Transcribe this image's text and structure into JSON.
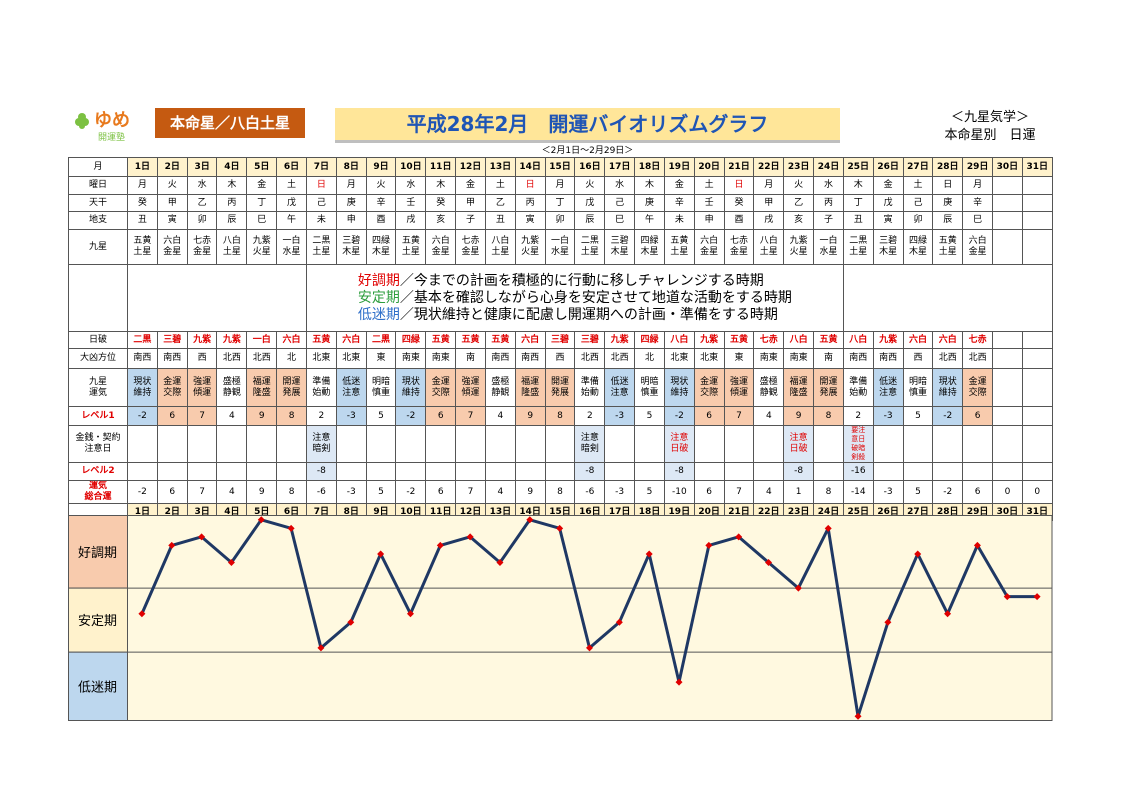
{
  "header": {
    "logo": "ゆめ",
    "logo_sub": "開運塾",
    "honmei": "本命星／八白土星",
    "title": "平成28年2月　開運バイオリズムグラフ",
    "subtitle": "＜2月1日～2月29日＞",
    "right_top": "＜九星気学＞",
    "right_bottom": "本命星別　日運"
  },
  "table": {
    "row_labels": {
      "month": "月",
      "weekday": "曜日",
      "stem": "天干",
      "branch": "地支",
      "star": "九星",
      "nippa": "日破",
      "direction": "大凶方位",
      "fortune": "九星\n運気",
      "level1": "レベル1",
      "caution": "金銭・契約\n注意日",
      "level2": "レベル2",
      "total": "運気\n総合運"
    },
    "row_label_colors": {
      "level1": "#e00000",
      "level2": "#e00000",
      "total": "#e00000"
    },
    "days": [
      "1日",
      "2日",
      "3日",
      "4日",
      "5日",
      "6日",
      "7日",
      "8日",
      "9日",
      "10日",
      "11日",
      "12日",
      "13日",
      "14日",
      "15日",
      "16日",
      "17日",
      "18日",
      "19日",
      "20日",
      "21日",
      "22日",
      "23日",
      "24日",
      "25日",
      "26日",
      "27日",
      "28日",
      "29日",
      "30日",
      "31日"
    ],
    "weekdays": [
      "月",
      "火",
      "水",
      "木",
      "金",
      "土",
      "日",
      "月",
      "火",
      "水",
      "木",
      "金",
      "土",
      "日",
      "月",
      "火",
      "水",
      "木",
      "金",
      "土",
      "日",
      "月",
      "火",
      "水",
      "木",
      "金",
      "土",
      "日",
      "月"
    ],
    "weekday_colors": [
      "#000",
      "#000",
      "#000",
      "#000",
      "#000",
      "#000",
      "#e00000",
      "#000",
      "#000",
      "#000",
      "#000",
      "#000",
      "#000",
      "#e00000",
      "#000",
      "#000",
      "#000",
      "#000",
      "#000",
      "#000",
      "#e00000",
      "#000",
      "#000",
      "#000",
      "#000",
      "#000",
      "#000",
      "#000",
      "#000"
    ],
    "stems": [
      "癸",
      "甲",
      "乙",
      "丙",
      "丁",
      "戊",
      "己",
      "庚",
      "辛",
      "壬",
      "癸",
      "甲",
      "乙",
      "丙",
      "丁",
      "戊",
      "己",
      "庚",
      "辛",
      "壬",
      "癸",
      "甲",
      "乙",
      "丙",
      "丁",
      "戊",
      "己",
      "庚",
      "辛"
    ],
    "branches": [
      "丑",
      "寅",
      "卯",
      "辰",
      "巳",
      "午",
      "未",
      "申",
      "酉",
      "戌",
      "亥",
      "子",
      "丑",
      "寅",
      "卯",
      "辰",
      "巳",
      "午",
      "未",
      "申",
      "酉",
      "戌",
      "亥",
      "子",
      "丑",
      "寅",
      "卯",
      "辰",
      "巳"
    ],
    "stars": [
      "五黄土星",
      "六白金星",
      "七赤金星",
      "八白土星",
      "九紫火星",
      "一白水星",
      "二黒土星",
      "三碧木星",
      "四緑木星",
      "五黄土星",
      "六白金星",
      "七赤金星",
      "八白土星",
      "九紫火星",
      "一白水星",
      "二黒土星",
      "三碧木星",
      "四緑木星",
      "五黄土星",
      "六白金星",
      "七赤金星",
      "八白土星",
      "九紫火星",
      "一白水星",
      "二黒土星",
      "三碧木星",
      "四緑木星",
      "五黄土星",
      "六白金星"
    ],
    "legend": [
      {
        "term": "好調期",
        "text": "／今までの計画を積極的に行動に移しチャレンジする時期",
        "color": "#e00000"
      },
      {
        "term": "安定期",
        "text": "／基本を確認しながら心身を安定させて地道な活動をする時期",
        "color": "#2e9e3e"
      },
      {
        "term": "低迷期",
        "text": "／現状維持と健康に配慮し開運期への計画・準備をする時期",
        "color": "#2f6fc9"
      }
    ],
    "nippa": [
      "二黒",
      "三碧",
      "九紫",
      "九紫",
      "一白",
      "六白",
      "五黄",
      "六白",
      "二黒",
      "四緑",
      "五黄",
      "五黄",
      "五黄",
      "六白",
      "三碧",
      "三碧",
      "九紫",
      "四緑",
      "八白",
      "九紫",
      "五黄",
      "七赤",
      "八白",
      "五黄",
      "八白",
      "九紫",
      "六白",
      "六白",
      "七赤"
    ],
    "nippa_color": "#e00000",
    "directions": [
      "南西",
      "南西",
      "西",
      "北西",
      "北西",
      "北",
      "北東",
      "北東",
      "東",
      "南東",
      "南東",
      "南",
      "南西",
      "南西",
      "西",
      "北西",
      "北西",
      "北",
      "北東",
      "北東",
      "東",
      "南東",
      "南東",
      "南",
      "南西",
      "南西",
      "西",
      "北西",
      "北西"
    ],
    "fortunes": [
      "現状維持",
      "金運交際",
      "強運傾運",
      "盛極静観",
      "福運隆盛",
      "開運発展",
      "準備始動",
      "低迷注意",
      "明暗慎重",
      "現状維持",
      "金運交際",
      "強運傾運",
      "盛極静観",
      "福運隆盛",
      "開運発展",
      "準備始動",
      "低迷注意",
      "明暗慎重",
      "現状維持",
      "金運交際",
      "強運傾運",
      "盛極静観",
      "福運隆盛",
      "開運発展",
      "準備始動",
      "低迷注意",
      "明暗慎重",
      "現状維持",
      "金運交際"
    ],
    "fortune_colors": [
      "#bdd7ee",
      "#f8cbad",
      "#f8cbad",
      "#fff",
      "#f8cbad",
      "#f8cbad",
      "#fff",
      "#bdd7ee",
      "#fff",
      "#bdd7ee",
      "#f8cbad",
      "#f8cbad",
      "#fff",
      "#f8cbad",
      "#f8cbad",
      "#fff",
      "#bdd7ee",
      "#fff",
      "#bdd7ee",
      "#f8cbad",
      "#f8cbad",
      "#fff",
      "#f8cbad",
      "#f8cbad",
      "#fff",
      "#bdd7ee",
      "#fff",
      "#bdd7ee",
      "#f8cbad"
    ],
    "level1": [
      -2,
      6,
      7,
      4,
      9,
      8,
      2,
      -3,
      5,
      -2,
      6,
      7,
      4,
      9,
      8,
      2,
      -3,
      5,
      -2,
      6,
      7,
      4,
      9,
      8,
      2,
      -3,
      5,
      -2,
      6
    ],
    "caution": [
      null,
      null,
      null,
      null,
      null,
      null,
      {
        "text": "注意暗剣",
        "color": "#000"
      },
      null,
      null,
      null,
      null,
      null,
      null,
      null,
      null,
      {
        "text": "注意暗剣",
        "color": "#000"
      },
      null,
      null,
      {
        "text": "注意日破",
        "color": "#e00000"
      },
      null,
      null,
      null,
      {
        "text": "注意日破",
        "color": "#e00000"
      },
      null,
      {
        "text": "要注意日破暗剣殺",
        "color": "#e00000"
      },
      null,
      null,
      null,
      null
    ],
    "level2": [
      null,
      null,
      null,
      null,
      null,
      null,
      -8,
      null,
      null,
      null,
      null,
      null,
      null,
      null,
      null,
      -8,
      null,
      null,
      -8,
      null,
      null,
      null,
      -8,
      null,
      -16,
      null,
      null,
      null,
      null
    ],
    "mark_color": "#dde8f5",
    "header_color": "#fff2cc"
  },
  "chart_data": {
    "type": "line",
    "categories": [
      "1日",
      "2日",
      "3日",
      "4日",
      "5日",
      "6日",
      "7日",
      "8日",
      "9日",
      "10日",
      "11日",
      "12日",
      "13日",
      "14日",
      "15日",
      "16日",
      "17日",
      "18日",
      "19日",
      "20日",
      "21日",
      "22日",
      "23日",
      "24日",
      "25日",
      "26日",
      "27日",
      "28日",
      "29日",
      "30日",
      "31日"
    ],
    "series": [
      {
        "color": "#1f3864",
        "marker_color": "#e00000",
        "values": [
          -2,
          6,
          7,
          4,
          9,
          8,
          -6,
          -3,
          5,
          -2,
          6,
          7,
          4,
          9,
          8,
          -6,
          -3,
          5,
          -10,
          6,
          7,
          4,
          1,
          8,
          -14,
          -3,
          5,
          -2,
          6,
          0,
          0
        ]
      }
    ],
    "ylim": [
      -14.5,
      9.5
    ],
    "bands": [
      {
        "label": "好調期",
        "from": 1,
        "to": 9.5,
        "color": "#f8cbad"
      },
      {
        "label": "安定期",
        "from": -6.5,
        "to": 1,
        "color": "#fff2cc"
      },
      {
        "label": "低迷期",
        "from": -14.5,
        "to": -6.5,
        "color": "#bdd7ee"
      }
    ],
    "plot_color": "#fff9e0"
  }
}
